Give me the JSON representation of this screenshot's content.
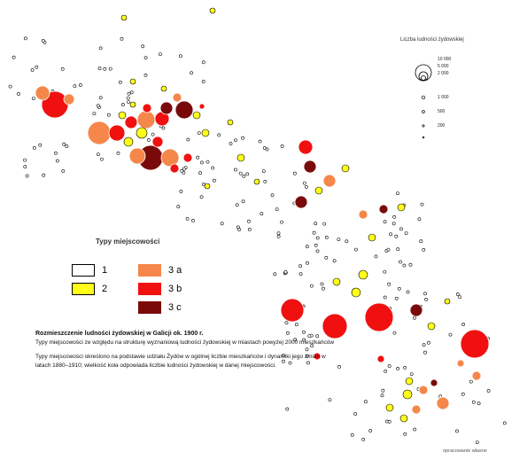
{
  "title": "Rozmieszczenie ludności żydowskiej w Galicji ok. 1900 r.",
  "caption_subtitle": "Typy miejscowości ze względu na strukturę wyznaniową ludności żydowskiej w miastach powyżej 2000 mieszkańców",
  "caption_body": "Typy miejscowości określono na podstawie udziału Żydów w ogólnej liczbie mieszkańców i dynamiki jego zmian w latach 1880–1910; wielkość koła odpowiada liczbie ludności żydowskiej w danej miejscowości.",
  "types_legend": {
    "title": "Typy miejscowości",
    "items": [
      {
        "label": "1",
        "color": "#ffffff"
      },
      {
        "label": "2",
        "color": "#ffff1a"
      },
      {
        "label": "3 a",
        "color": "#f5874a"
      },
      {
        "label": "3 b",
        "color": "#f01010"
      },
      {
        "label": "3 c",
        "color": "#7a0a0a"
      }
    ]
  },
  "size_legend": {
    "title": "Liczba ludności żydowskiej",
    "items": [
      "10 000",
      "5 000",
      "2 000",
      "1 000",
      "500",
      "200"
    ]
  },
  "credit": "opracowanie własne",
  "colors": {
    "type1": "#ffffff",
    "type2": "#ffff1a",
    "type3a": "#f5874a",
    "type3b": "#f01010",
    "type3c": "#7a0a0a",
    "outline": "#000000"
  }
}
